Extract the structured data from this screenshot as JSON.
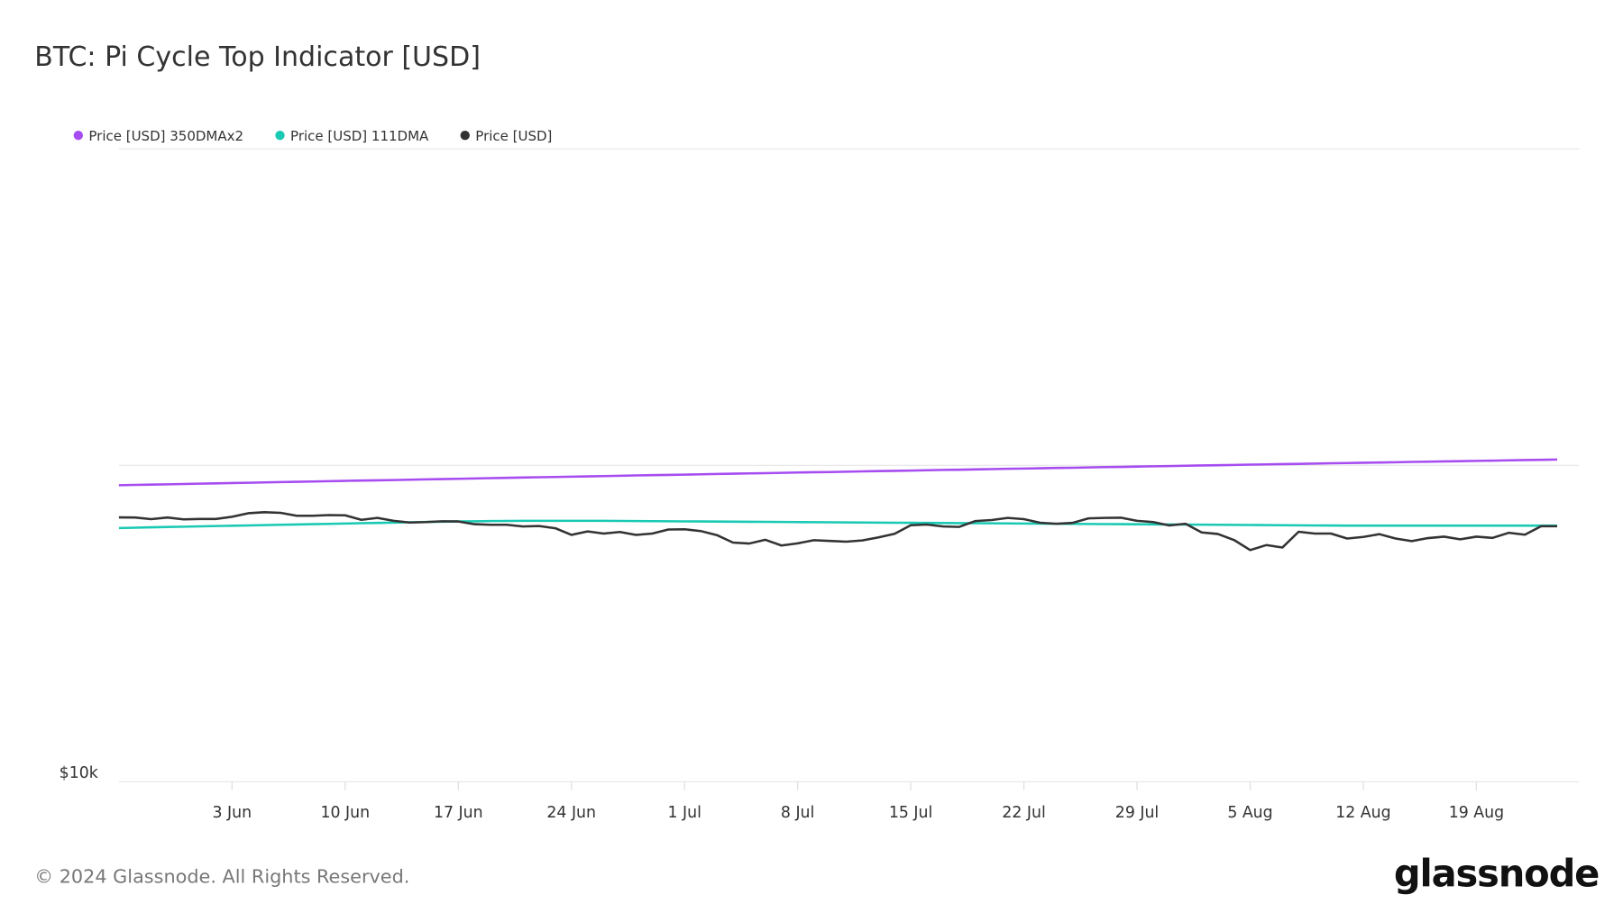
{
  "chart_data": {
    "type": "line",
    "title": "BTC: Pi Cycle Top Indicator [USD]",
    "log_scale": true,
    "grid": true,
    "legend": "top-left",
    "categories": [
      "27 May",
      "28 May",
      "29 May",
      "30 May",
      "31 May",
      "1 Jun",
      "2 Jun",
      "3 Jun",
      "4 Jun",
      "5 Jun",
      "6 Jun",
      "7 Jun",
      "8 Jun",
      "9 Jun",
      "10 Jun",
      "11 Jun",
      "12 Jun",
      "13 Jun",
      "14 Jun",
      "15 Jun",
      "16 Jun",
      "17 Jun",
      "18 Jun",
      "19 Jun",
      "20 Jun",
      "21 Jun",
      "22 Jun",
      "23 Jun",
      "24 Jun",
      "25 Jun",
      "26 Jun",
      "27 Jun",
      "28 Jun",
      "29 Jun",
      "30 Jun",
      "1 Jul",
      "2 Jul",
      "3 Jul",
      "4 Jul",
      "5 Jul",
      "6 Jul",
      "7 Jul",
      "8 Jul",
      "9 Jul",
      "10 Jul",
      "11 Jul",
      "12 Jul",
      "13 Jul",
      "14 Jul",
      "15 Jul",
      "16 Jul",
      "17 Jul",
      "18 Jul",
      "19 Jul",
      "20 Jul",
      "21 Jul",
      "22 Jul",
      "23 Jul",
      "24 Jul",
      "25 Jul",
      "26 Jul",
      "27 Jul",
      "28 Jul",
      "29 Jul",
      "30 Jul",
      "31 Jul",
      "1 Aug",
      "2 Aug",
      "3 Aug",
      "4 Aug",
      "5 Aug",
      "6 Aug",
      "7 Aug",
      "8 Aug",
      "9 Aug",
      "10 Aug",
      "11 Aug",
      "12 Aug",
      "13 Aug",
      "14 Aug",
      "15 Aug",
      "16 Aug",
      "17 Aug",
      "18 Aug",
      "19 Aug",
      "20 Aug",
      "21 Aug",
      "22 Aug",
      "23 Aug",
      "24 Aug"
    ],
    "xticks": [
      "3 Jun",
      "10 Jun",
      "17 Jun",
      "24 Jun",
      "1 Jul",
      "8 Jul",
      "15 Jul",
      "22 Jul",
      "29 Jul",
      "5 Aug",
      "12 Aug",
      "19 Aug"
    ],
    "ylim": [
      10000,
      1000000
    ],
    "yticks": [
      {
        "value": 10000,
        "label": "$10k"
      },
      {
        "value": 100000,
        "label": null
      },
      {
        "value": 1000000,
        "label": null
      }
    ],
    "series": [
      {
        "name": "Price [USD] 350DMAx2",
        "color": "#a64cf0",
        "values": [
          86500,
          86700,
          86900,
          87100,
          87300,
          87500,
          87700,
          87900,
          88100,
          88300,
          88500,
          88700,
          88900,
          89100,
          89300,
          89500,
          89700,
          89900,
          90100,
          90300,
          90500,
          90700,
          90900,
          91100,
          91300,
          91500,
          91700,
          91900,
          92100,
          92300,
          92500,
          92700,
          92900,
          93100,
          93300,
          93500,
          93700,
          93900,
          94100,
          94300,
          94500,
          94700,
          94900,
          95100,
          95300,
          95500,
          95700,
          95900,
          96100,
          96300,
          96500,
          96700,
          96900,
          97100,
          97300,
          97500,
          97700,
          97900,
          98100,
          98300,
          98500,
          98700,
          98900,
          99100,
          99300,
          99500,
          99700,
          99900,
          100100,
          100300,
          100500,
          100700,
          100900,
          101100,
          101300,
          101500,
          101700,
          101900,
          102100,
          102300,
          102500,
          102700,
          102900,
          103100,
          103300,
          103500,
          103700,
          103900,
          104100,
          104300
        ]
      },
      {
        "name": "Price [USD] 111DMA",
        "color": "#19c9b3",
        "values": [
          63400,
          63550,
          63700,
          63850,
          64000,
          64150,
          64300,
          64450,
          64600,
          64750,
          64900,
          65050,
          65200,
          65350,
          65500,
          65650,
          65800,
          65950,
          66100,
          66250,
          66400,
          66500,
          66600,
          66700,
          66750,
          66800,
          66800,
          66800,
          66800,
          66800,
          66800,
          66750,
          66700,
          66650,
          66600,
          66550,
          66500,
          66450,
          66400,
          66350,
          66300,
          66250,
          66200,
          66150,
          66100,
          66050,
          66000,
          65950,
          65900,
          65850,
          65800,
          65750,
          65700,
          65650,
          65600,
          65550,
          65500,
          65450,
          65400,
          65350,
          65300,
          65250,
          65200,
          65150,
          65100,
          65050,
          65000,
          64950,
          64900,
          64850,
          64800,
          64750,
          64700,
          64650,
          64600,
          64550,
          64500,
          64500,
          64500,
          64500,
          64500,
          64500,
          64500,
          64500,
          64500,
          64500,
          64500,
          64500,
          64500,
          64500
        ]
      },
      {
        "name": "Price [USD]",
        "color": "#333333",
        "values": [
          68500,
          68400,
          67600,
          68400,
          67500,
          67700,
          67700,
          68800,
          70600,
          71100,
          70800,
          69300,
          69300,
          69600,
          69500,
          67300,
          68200,
          66800,
          66000,
          66200,
          66600,
          66500,
          65200,
          64900,
          64900,
          64100,
          64300,
          63300,
          60300,
          61800,
          60900,
          61600,
          60300,
          60900,
          62700,
          62800,
          62000,
          60200,
          57000,
          56600,
          58200,
          55800,
          56700,
          58000,
          57700,
          57400,
          57900,
          59200,
          60800,
          64700,
          65000,
          64100,
          63900,
          66700,
          67200,
          68200,
          67600,
          65900,
          65400,
          65800,
          68000,
          68200,
          68300,
          66800,
          66200,
          64600,
          65400,
          61400,
          60700,
          58100,
          54000,
          56000,
          55000,
          61700,
          60900,
          60900,
          58700,
          59400,
          60600,
          58700,
          57600,
          58900,
          59500,
          58400,
          59500,
          59000,
          61200,
          60400,
          64200,
          64200
        ]
      }
    ]
  },
  "footer": {
    "copyright": "© 2024 Glassnode. All Rights Reserved.",
    "logo": "glassnode"
  }
}
